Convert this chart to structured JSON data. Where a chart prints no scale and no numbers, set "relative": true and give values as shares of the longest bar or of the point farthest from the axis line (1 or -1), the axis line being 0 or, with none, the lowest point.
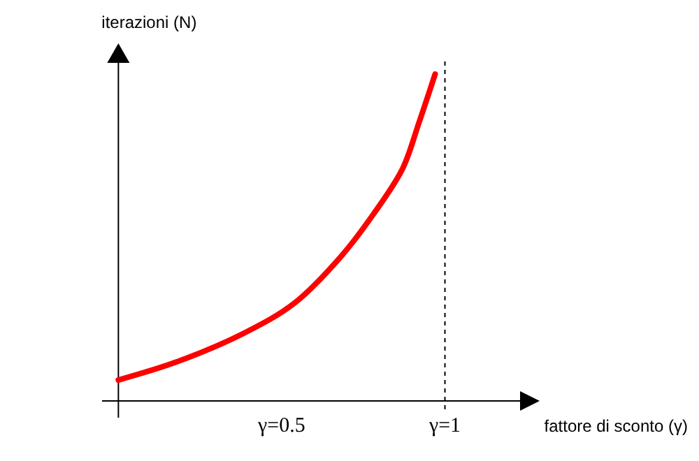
{
  "chart_data": {
    "type": "line",
    "relative": true,
    "xlabel": "fattore di sconto (γ)",
    "ylabel": "iterazioni (N)",
    "x": [
      0,
      0.18,
      0.39,
      0.54,
      0.68,
      0.78,
      0.87,
      0.92,
      0.97
    ],
    "series": [
      {
        "color": "#ff0000",
        "values": [
          0.064,
          0.12,
          0.21,
          0.3,
          0.44,
          0.57,
          0.71,
          0.85,
          1
        ]
      }
    ],
    "xlim": [
      -0.05,
      1.23
    ],
    "xticks": [
      {
        "value": 0.5,
        "label": "γ=0.5"
      },
      {
        "value": 1,
        "label": "γ=1"
      }
    ],
    "ref_lines": [
      {
        "axis": "x",
        "value": 1,
        "line_style": "dashed",
        "color": "#000000"
      }
    ],
    "grid": false,
    "marker": "none",
    "line_style": "solid"
  }
}
